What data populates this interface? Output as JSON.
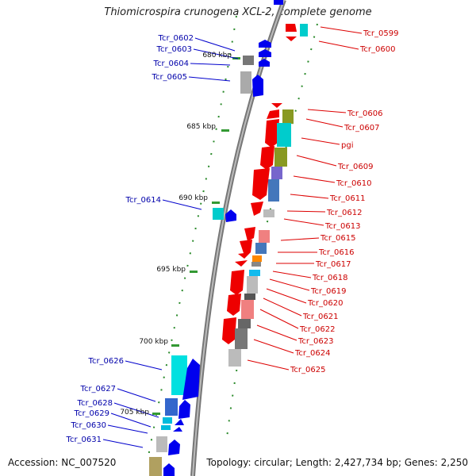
{
  "title": "Thiomicrospira crunogena XCL-2, complete genome",
  "footer": {
    "accession": "Accession: NC_007520",
    "topology": "Topology: circular; Length: 2,427,734 bp; Genes: 2,250"
  },
  "kbp_ticks": [
    "680 kbp",
    "685 kbp",
    "690 kbp",
    "695 kbp",
    "700 kbp",
    "705 kbp"
  ],
  "left_labels": [
    "Tcr_0602",
    "Tcr_0603",
    "Tcr_0604",
    "Tcr_0605",
    "Tcr_0614",
    "Tcr_0626",
    "Tcr_0627",
    "Tcr_0628",
    "Tcr_0629",
    "Tcr_0630",
    "Tcr_0631"
  ],
  "right_labels": [
    "Tcr_0599",
    "Tcr_0600",
    "Tcr_0606",
    "Tcr_0607",
    "pgi",
    "Tcr_0609",
    "Tcr_0610",
    "Tcr_0611",
    "Tcr_0612",
    "Tcr_0613",
    "Tcr_0615",
    "Tcr_0616",
    "Tcr_0617",
    "Tcr_0618",
    "Tcr_0619",
    "Tcr_0620",
    "Tcr_0621",
    "Tcr_0622",
    "Tcr_0623",
    "Tcr_0624",
    "Tcr_0625"
  ],
  "colors": {
    "forward_strand": "#0000ee",
    "reverse_strand": "#ee0000",
    "tick": "#339933",
    "backbone": "#888888",
    "left_label": "#0000aa",
    "right_label": "#cc0000"
  }
}
